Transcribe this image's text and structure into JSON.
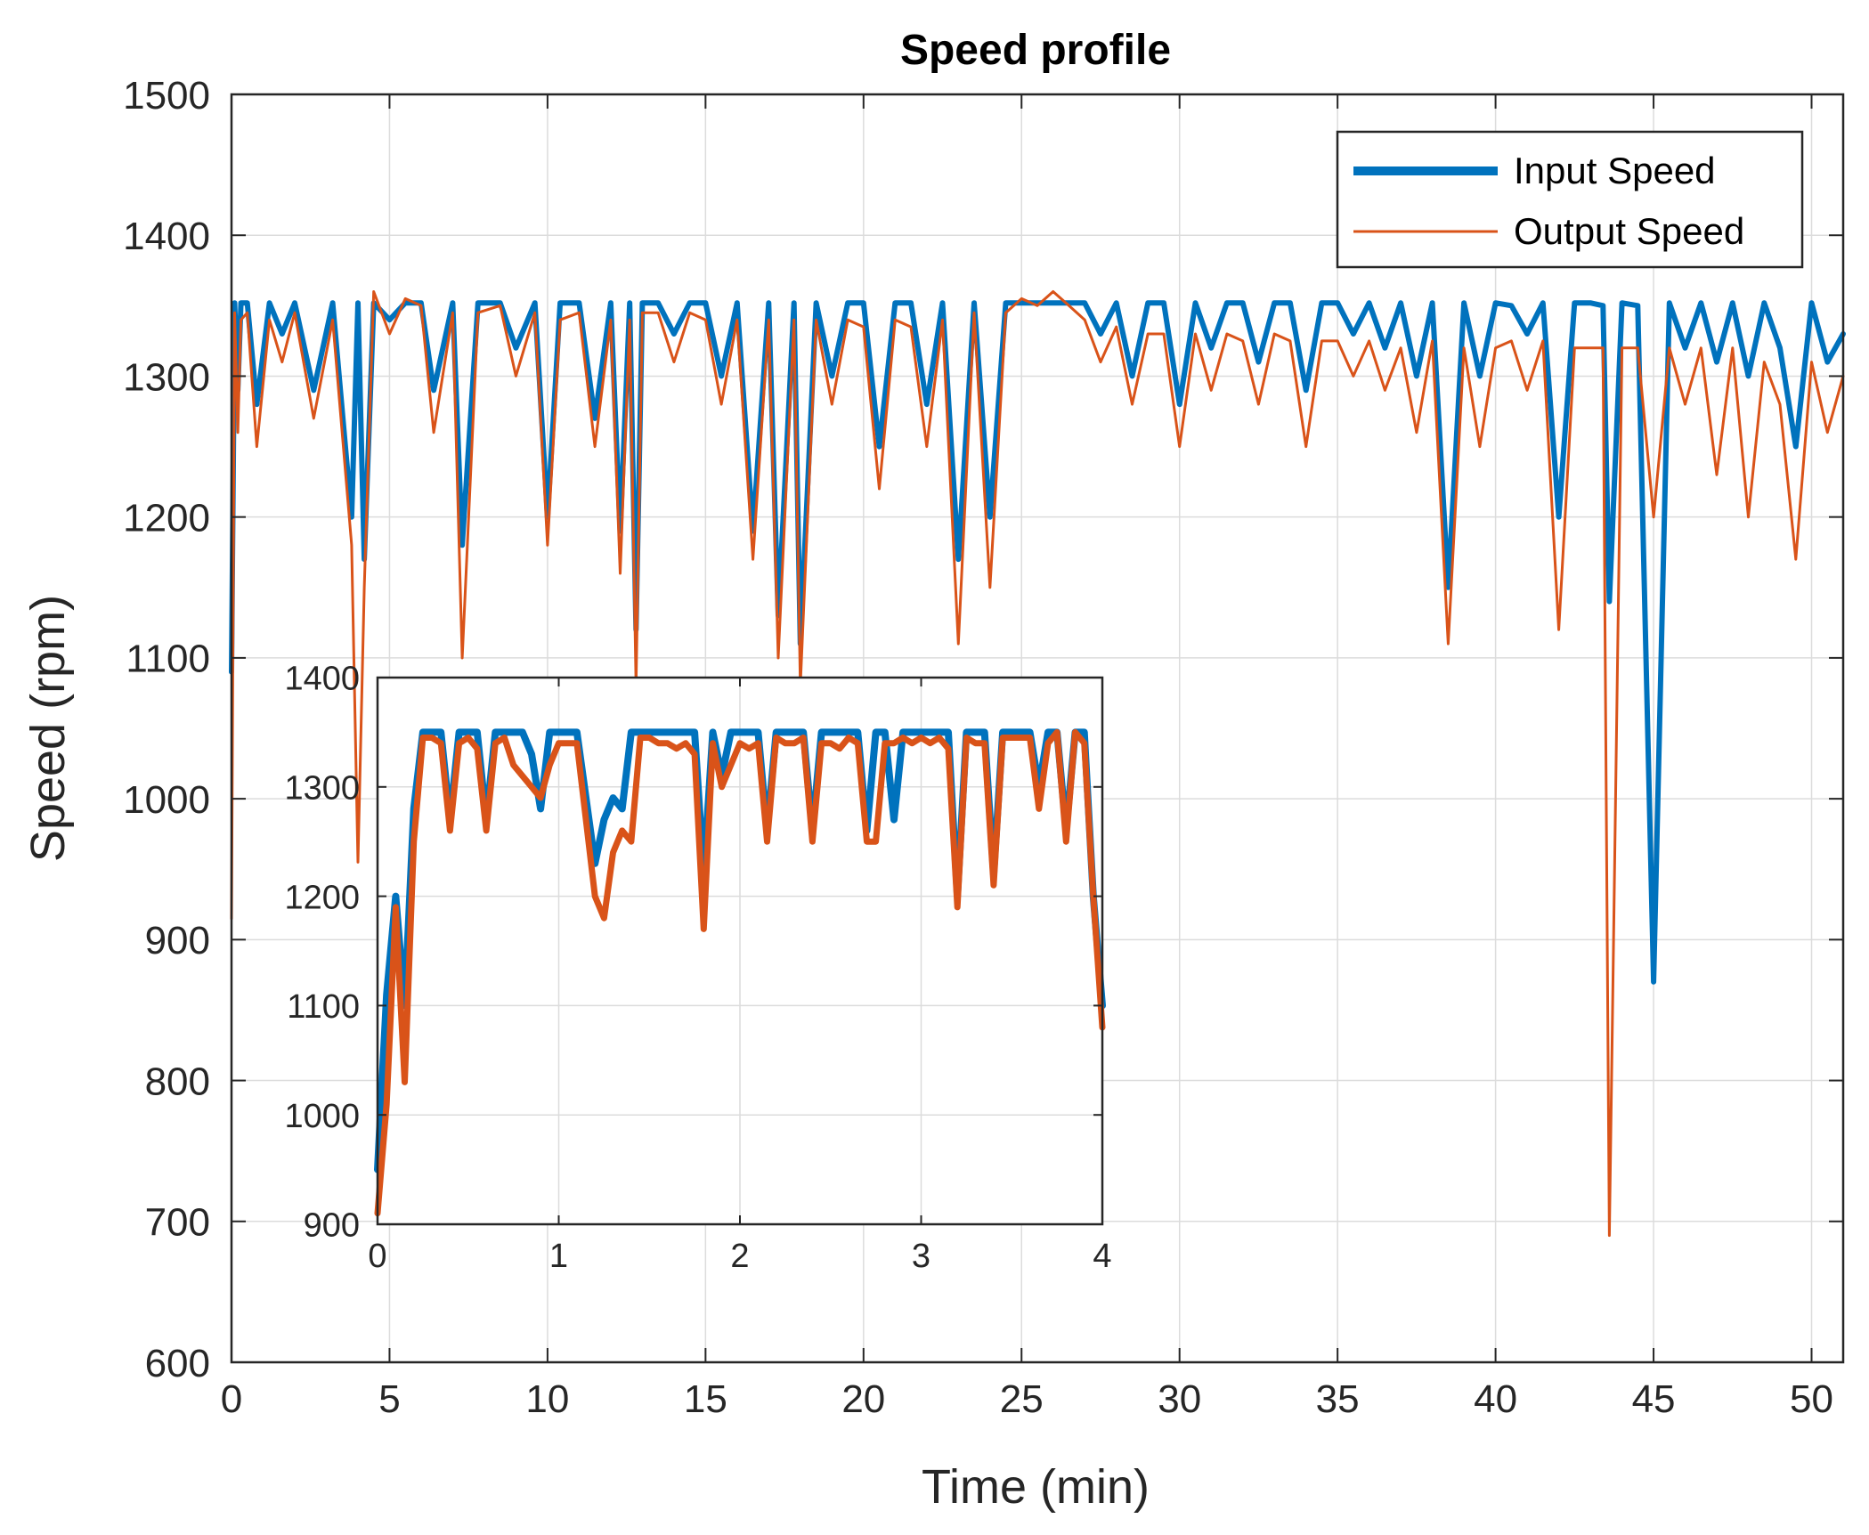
{
  "chart_data": [
    {
      "id": "main",
      "type": "line",
      "title": "Speed profile",
      "xlabel": "Time (min)",
      "ylabel": "Speed (rpm)",
      "xlim": [
        0,
        51
      ],
      "ylim": [
        600,
        1500
      ],
      "xticks": [
        0,
        5,
        10,
        15,
        20,
        25,
        30,
        35,
        40,
        45,
        50
      ],
      "yticks": [
        600,
        700,
        800,
        900,
        1000,
        1100,
        1200,
        1300,
        1400,
        1500
      ],
      "grid": true,
      "legend": {
        "location": "top-right",
        "entries": [
          "Input Speed",
          "Output Speed"
        ]
      },
      "series": [
        {
          "name": "Input Speed",
          "color": "#0072BD",
          "x": [
            0,
            0.1,
            0.2,
            0.3,
            0.5,
            0.8,
            1.2,
            1.6,
            2.0,
            2.6,
            3.2,
            3.8,
            4.0,
            4.2,
            4.5,
            5.0,
            5.5,
            6.0,
            6.4,
            7.0,
            7.3,
            7.8,
            8.5,
            9.0,
            9.6,
            10.0,
            10.4,
            11.0,
            11.5,
            12.0,
            12.3,
            12.6,
            12.8,
            13.0,
            13.5,
            14.0,
            14.5,
            15.0,
            15.5,
            16.0,
            16.5,
            17.0,
            17.3,
            17.8,
            18.0,
            18.5,
            19.0,
            19.5,
            20.0,
            20.5,
            21.0,
            21.5,
            22.0,
            22.5,
            23.0,
            23.5,
            24.0,
            24.5,
            25.0,
            25.5,
            26.0,
            26.5,
            27.0,
            27.5,
            28.0,
            28.5,
            29.0,
            29.5,
            30.0,
            30.5,
            31.0,
            31.5,
            32.0,
            32.5,
            33.0,
            33.5,
            34.0,
            34.5,
            35.0,
            35.5,
            36.0,
            36.5,
            37.0,
            37.5,
            38.0,
            38.5,
            39.0,
            39.5,
            40.0,
            40.5,
            41.0,
            41.5,
            42.0,
            42.5,
            43.0,
            43.4,
            43.6,
            44.0,
            44.5,
            45.0,
            45.5,
            46.0,
            46.5,
            47.0,
            47.5,
            48.0,
            48.5,
            49.0,
            49.5,
            50.0,
            50.5,
            51.0
          ],
          "values": [
            1090,
            1352,
            1290,
            1352,
            1352,
            1280,
            1352,
            1330,
            1352,
            1290,
            1352,
            1200,
            1352,
            1170,
            1352,
            1340,
            1352,
            1352,
            1290,
            1352,
            1180,
            1352,
            1352,
            1320,
            1352,
            1200,
            1352,
            1352,
            1270,
            1352,
            1190,
            1352,
            1120,
            1352,
            1352,
            1330,
            1352,
            1352,
            1300,
            1352,
            1190,
            1352,
            1130,
            1352,
            1110,
            1352,
            1300,
            1352,
            1352,
            1250,
            1352,
            1352,
            1280,
            1352,
            1170,
            1352,
            1200,
            1352,
            1352,
            1352,
            1352,
            1352,
            1352,
            1330,
            1352,
            1300,
            1352,
            1352,
            1280,
            1352,
            1320,
            1352,
            1352,
            1310,
            1352,
            1352,
            1290,
            1352,
            1352,
            1330,
            1352,
            1320,
            1352,
            1300,
            1352,
            1150,
            1352,
            1300,
            1352,
            1350,
            1330,
            1352,
            1200,
            1352,
            1352,
            1350,
            1140,
            1352,
            1350,
            870,
            1352,
            1320,
            1352,
            1310,
            1352,
            1300,
            1352,
            1320,
            1250,
            1352,
            1310,
            1330
          ]
        },
        {
          "name": "Output Speed",
          "color": "#D95319",
          "x": [
            0,
            0.1,
            0.2,
            0.3,
            0.5,
            0.8,
            1.2,
            1.6,
            2.0,
            2.6,
            3.2,
            3.8,
            4.0,
            4.2,
            4.5,
            5.0,
            5.5,
            6.0,
            6.4,
            7.0,
            7.3,
            7.8,
            8.5,
            9.0,
            9.6,
            10.0,
            10.4,
            11.0,
            11.5,
            12.0,
            12.3,
            12.6,
            12.8,
            13.0,
            13.5,
            14.0,
            14.5,
            15.0,
            15.5,
            16.0,
            16.5,
            17.0,
            17.3,
            17.8,
            18.0,
            18.5,
            19.0,
            19.5,
            20.0,
            20.5,
            21.0,
            21.5,
            22.0,
            22.5,
            23.0,
            23.5,
            24.0,
            24.5,
            25.0,
            25.5,
            26.0,
            26.5,
            27.0,
            27.5,
            28.0,
            28.5,
            29.0,
            29.5,
            30.0,
            30.5,
            31.0,
            31.5,
            32.0,
            32.5,
            33.0,
            33.5,
            34.0,
            34.5,
            35.0,
            35.5,
            36.0,
            36.5,
            37.0,
            37.5,
            38.0,
            38.5,
            39.0,
            39.5,
            40.0,
            40.5,
            41.0,
            41.5,
            42.0,
            42.5,
            43.0,
            43.4,
            43.6,
            44.0,
            44.5,
            45.0,
            45.5,
            46.0,
            46.5,
            47.0,
            47.5,
            48.0,
            48.5,
            49.0,
            49.5,
            50.0,
            50.5,
            51.0
          ],
          "values": [
            915,
            1345,
            1260,
            1340,
            1345,
            1250,
            1340,
            1310,
            1345,
            1270,
            1340,
            1180,
            955,
            1150,
            1360,
            1330,
            1355,
            1350,
            1260,
            1345,
            1100,
            1345,
            1350,
            1300,
            1345,
            1180,
            1340,
            1345,
            1250,
            1340,
            1160,
            1340,
            1080,
            1345,
            1345,
            1310,
            1345,
            1340,
            1280,
            1340,
            1170,
            1340,
            1100,
            1340,
            1080,
            1340,
            1280,
            1340,
            1335,
            1220,
            1340,
            1335,
            1250,
            1340,
            1110,
            1345,
            1150,
            1345,
            1355,
            1350,
            1360,
            1350,
            1340,
            1310,
            1335,
            1280,
            1330,
            1330,
            1250,
            1330,
            1290,
            1330,
            1325,
            1280,
            1330,
            1325,
            1250,
            1325,
            1325,
            1300,
            1325,
            1290,
            1320,
            1260,
            1325,
            1110,
            1320,
            1250,
            1320,
            1325,
            1290,
            1325,
            1120,
            1320,
            1320,
            1320,
            690,
            1320,
            1320,
            1200,
            1320,
            1280,
            1320,
            1230,
            1320,
            1200,
            1310,
            1280,
            1170,
            1310,
            1260,
            1300
          ]
        }
      ]
    },
    {
      "id": "inset",
      "type": "line",
      "title": "",
      "xlabel": "",
      "ylabel": "",
      "xlim": [
        0,
        4
      ],
      "ylim": [
        900,
        1400
      ],
      "xticks": [
        0,
        1,
        2,
        3,
        4
      ],
      "yticks": [
        900,
        1000,
        1100,
        1200,
        1300,
        1400
      ],
      "grid": true,
      "series": [
        {
          "name": "Input Speed",
          "color": "#0072BD",
          "x": [
            0,
            0.05,
            0.1,
            0.15,
            0.2,
            0.25,
            0.3,
            0.35,
            0.4,
            0.45,
            0.5,
            0.55,
            0.6,
            0.65,
            0.7,
            0.75,
            0.8,
            0.85,
            0.9,
            0.95,
            1.0,
            1.1,
            1.2,
            1.25,
            1.3,
            1.35,
            1.4,
            1.45,
            1.5,
            1.55,
            1.6,
            1.65,
            1.7,
            1.75,
            1.8,
            1.85,
            1.9,
            1.95,
            2.0,
            2.05,
            2.1,
            2.15,
            2.2,
            2.25,
            2.3,
            2.35,
            2.4,
            2.45,
            2.5,
            2.55,
            2.6,
            2.65,
            2.7,
            2.75,
            2.8,
            2.85,
            2.9,
            2.95,
            3.0,
            3.05,
            3.1,
            3.15,
            3.2,
            3.25,
            3.3,
            3.35,
            3.4,
            3.45,
            3.5,
            3.55,
            3.6,
            3.65,
            3.7,
            3.75,
            3.8,
            3.85,
            3.9,
            3.95,
            4.0
          ],
          "values": [
            950,
            1110,
            1200,
            1100,
            1280,
            1350,
            1350,
            1350,
            1270,
            1350,
            1350,
            1350,
            1270,
            1350,
            1350,
            1350,
            1350,
            1330,
            1280,
            1350,
            1350,
            1350,
            1230,
            1270,
            1290,
            1280,
            1350,
            1350,
            1350,
            1350,
            1350,
            1350,
            1350,
            1350,
            1220,
            1350,
            1310,
            1350,
            1350,
            1350,
            1350,
            1260,
            1350,
            1350,
            1350,
            1350,
            1260,
            1350,
            1350,
            1350,
            1350,
            1350,
            1260,
            1350,
            1350,
            1270,
            1350,
            1350,
            1350,
            1350,
            1350,
            1350,
            1200,
            1350,
            1350,
            1350,
            1220,
            1350,
            1350,
            1350,
            1350,
            1300,
            1350,
            1350,
            1260,
            1350,
            1350,
            1200,
            1100
          ]
        },
        {
          "name": "Output Speed",
          "color": "#D95319",
          "x": [
            0,
            0.05,
            0.1,
            0.15,
            0.2,
            0.25,
            0.3,
            0.35,
            0.4,
            0.45,
            0.5,
            0.55,
            0.6,
            0.65,
            0.7,
            0.75,
            0.8,
            0.85,
            0.9,
            0.95,
            1.0,
            1.1,
            1.2,
            1.25,
            1.3,
            1.35,
            1.4,
            1.45,
            1.5,
            1.55,
            1.6,
            1.65,
            1.7,
            1.75,
            1.8,
            1.85,
            1.9,
            1.95,
            2.0,
            2.05,
            2.1,
            2.15,
            2.2,
            2.25,
            2.3,
            2.35,
            2.4,
            2.45,
            2.5,
            2.55,
            2.6,
            2.65,
            2.7,
            2.75,
            2.8,
            2.85,
            2.9,
            2.95,
            3.0,
            3.05,
            3.1,
            3.15,
            3.2,
            3.25,
            3.3,
            3.35,
            3.4,
            3.45,
            3.5,
            3.55,
            3.6,
            3.65,
            3.7,
            3.75,
            3.8,
            3.85,
            3.9,
            3.95,
            4.0
          ],
          "values": [
            910,
            1010,
            1190,
            1030,
            1250,
            1345,
            1345,
            1340,
            1260,
            1340,
            1345,
            1335,
            1260,
            1340,
            1345,
            1320,
            1310,
            1300,
            1290,
            1320,
            1340,
            1340,
            1200,
            1180,
            1240,
            1260,
            1250,
            1345,
            1345,
            1340,
            1340,
            1335,
            1340,
            1330,
            1170,
            1340,
            1300,
            1320,
            1340,
            1335,
            1340,
            1250,
            1345,
            1340,
            1340,
            1345,
            1250,
            1340,
            1340,
            1335,
            1345,
            1340,
            1250,
            1250,
            1340,
            1340,
            1345,
            1340,
            1345,
            1340,
            1345,
            1335,
            1190,
            1345,
            1340,
            1340,
            1210,
            1345,
            1345,
            1345,
            1345,
            1280,
            1340,
            1350,
            1250,
            1350,
            1340,
            1200,
            1080
          ]
        }
      ]
    }
  ]
}
